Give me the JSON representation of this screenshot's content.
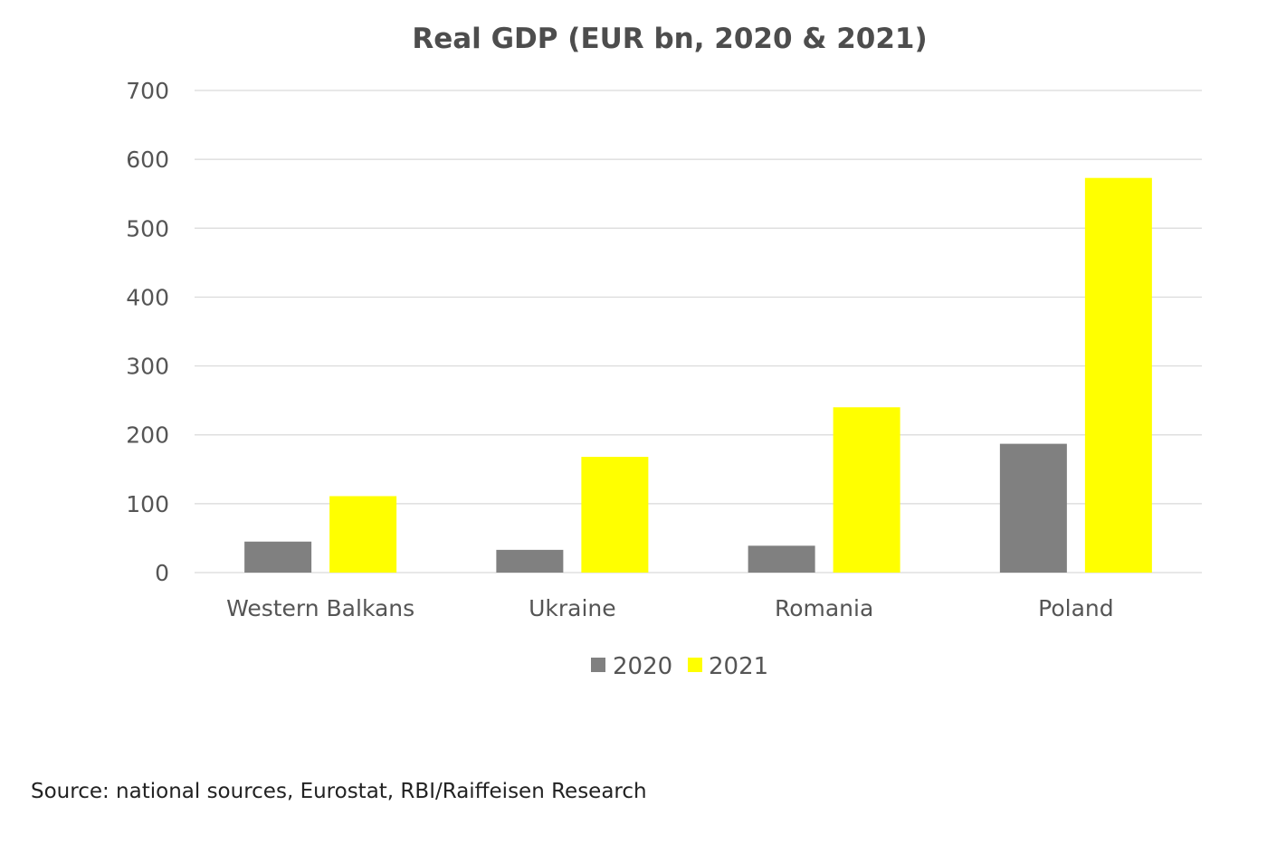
{
  "chart_data": {
    "type": "bar",
    "title": "Real GDP (EUR bn, 2020 & 2021)",
    "categories": [
      "Western Balkans",
      "Ukraine",
      "Romania",
      "Poland"
    ],
    "series": [
      {
        "name": "2020",
        "values": [
          45,
          33,
          39,
          187
        ],
        "color": "#808080"
      },
      {
        "name": "2021",
        "values": [
          111,
          168,
          240,
          573
        ],
        "color": "#ffff00"
      }
    ],
    "ylim": [
      0,
      700
    ],
    "yticks": [
      0,
      100,
      200,
      300,
      400,
      500,
      600,
      700
    ],
    "grid": true,
    "legend_position": "bottom"
  },
  "source": "Source: national sources, Eurostat, RBI/Raiffeisen Research"
}
